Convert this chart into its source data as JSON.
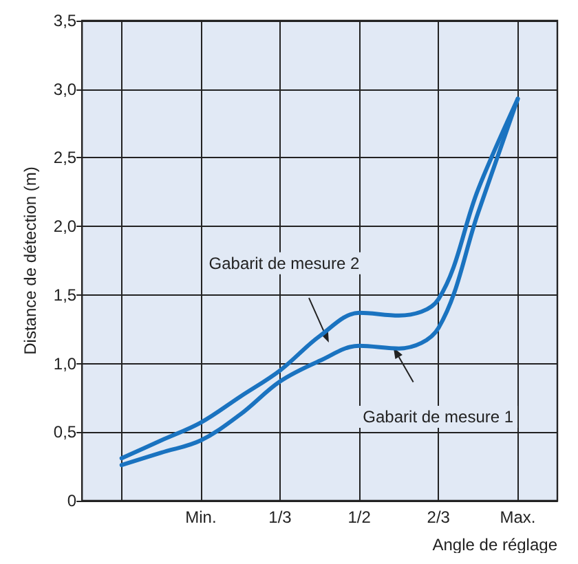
{
  "chart_data": {
    "type": "line",
    "xlabel": "Angle de réglage",
    "ylabel": "Distance de détection (m)",
    "categories": [
      null,
      null,
      null,
      "Min.",
      null,
      "1/3",
      null,
      "1/2",
      null,
      "2/3",
      null,
      "Max.",
      null
    ],
    "ylim": [
      0,
      3.5
    ],
    "yticks": [
      0,
      {
        "value": 0.5,
        "label": "0,5"
      },
      {
        "value": 1,
        "label": "1,0"
      },
      {
        "value": 1.5,
        "label": "1,5"
      },
      {
        "value": 2,
        "label": "2,0"
      },
      {
        "value": 2.5,
        "label": "2,5"
      },
      {
        "value": 3,
        "label": "3,0"
      },
      {
        "value": 3.5,
        "label": "3,5"
      }
    ],
    "grid": true,
    "marker": "none",
    "line_style": "solid",
    "series": [
      {
        "color": "#1a73c0",
        "values": [
          null,
          0.31,
          0.44,
          0.57,
          0.76,
          0.95,
          1.2,
          1.37,
          1.35,
          1.47,
          2.27,
          2.93,
          null
        ]
      },
      {
        "color": "#1a73c0",
        "values": [
          null,
          0.26,
          0.35,
          0.44,
          0.63,
          0.87,
          1.02,
          1.13,
          1.11,
          1.26,
          2.1,
          2.93,
          null
        ]
      }
    ],
    "annotations": [
      "Gabarit de mesure 2",
      "Gabarit de mesure 1"
    ]
  }
}
